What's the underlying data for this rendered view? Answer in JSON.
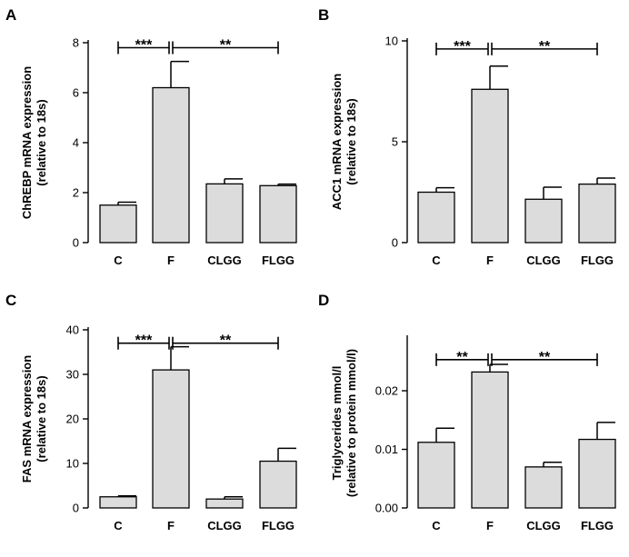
{
  "chart_data": [
    {
      "panel": "A",
      "type": "bar",
      "categories": [
        "C",
        "F",
        "CLGG",
        "FLGG"
      ],
      "values": [
        1.5,
        6.2,
        2.35,
        2.28
      ],
      "errors": [
        0.12,
        1.05,
        0.2,
        0.06
      ],
      "ylabel_line1": "ChREBP mRNA expression",
      "ylabel_line2": "(relative to 18s)",
      "ylim": [
        0,
        8
      ],
      "yticks": [
        0,
        2,
        4,
        6,
        8
      ],
      "ytick_labels": [
        "0",
        "2",
        "4",
        "6",
        "8"
      ],
      "significance": [
        {
          "from": 0,
          "to": 1,
          "label": "***"
        },
        {
          "from": 1,
          "to": 3,
          "label": "**"
        }
      ],
      "sig_y": 7.8
    },
    {
      "panel": "B",
      "type": "bar",
      "categories": [
        "C",
        "F",
        "CLGG",
        "FLGG"
      ],
      "values": [
        2.5,
        7.6,
        2.15,
        2.9
      ],
      "errors": [
        0.22,
        1.15,
        0.6,
        0.3
      ],
      "ylabel_line1": "ACC1 mRNA expression",
      "ylabel_line2": "(relative to 18s)",
      "ylim": [
        0,
        10
      ],
      "yticks": [
        0,
        5,
        10
      ],
      "ytick_labels": [
        "0",
        "5",
        "10"
      ],
      "significance": [
        {
          "from": 0,
          "to": 1,
          "label": "***"
        },
        {
          "from": 1,
          "to": 3,
          "label": "**"
        }
      ],
      "sig_y": 9.6
    },
    {
      "panel": "C",
      "type": "bar",
      "categories": [
        "C",
        "F",
        "CLGG",
        "FLGG"
      ],
      "values": [
        2.5,
        31.0,
        2.0,
        10.5
      ],
      "errors": [
        0.2,
        5.2,
        0.5,
        2.9
      ],
      "ylabel_line1": "FAS mRNA expression",
      "ylabel_line2": "(relative to 18s)",
      "ylim": [
        0,
        40
      ],
      "yticks": [
        0,
        10,
        20,
        30,
        40
      ],
      "ytick_labels": [
        "0",
        "10",
        "20",
        "30",
        "40"
      ],
      "significance": [
        {
          "from": 0,
          "to": 1,
          "label": "***"
        },
        {
          "from": 1,
          "to": 3,
          "label": "**"
        }
      ],
      "sig_y": 37.0
    },
    {
      "panel": "D",
      "type": "bar",
      "categories": [
        "C",
        "F",
        "CLGG",
        "FLGG"
      ],
      "values": [
        0.0112,
        0.0232,
        0.007,
        0.0117
      ],
      "errors": [
        0.0024,
        0.0013,
        0.0008,
        0.0029
      ],
      "ylabel_line1": "Triglycerides mmol/l",
      "ylabel_line2": "(relative to protein mmol/l)",
      "ylim": [
        0,
        0.029
      ],
      "yticks": [
        0,
        0.01,
        0.02
      ],
      "ytick_labels": [
        "0.00",
        "0.01",
        "0.02"
      ],
      "significance": [
        {
          "from": 0,
          "to": 1,
          "label": "**"
        },
        {
          "from": 1,
          "to": 3,
          "label": "**"
        }
      ],
      "sig_y": 0.0253
    }
  ]
}
